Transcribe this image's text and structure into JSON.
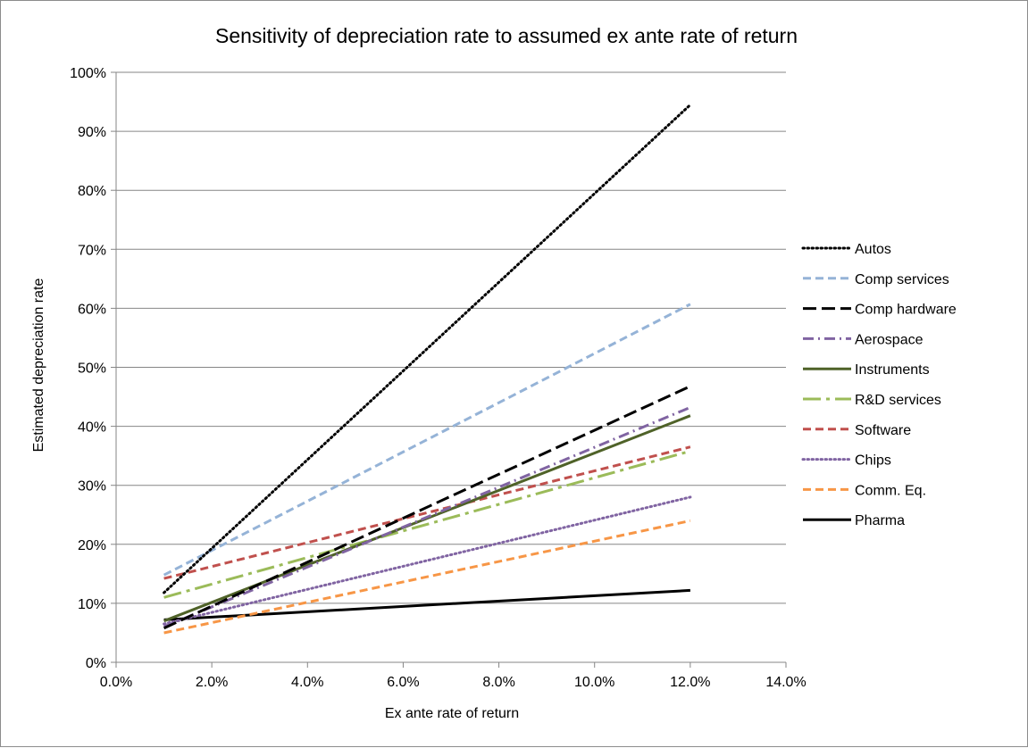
{
  "chart_data": {
    "type": "line",
    "title": "Sensitivity of depreciation rate to assumed ex ante rate of return",
    "xlabel": "Ex ante rate of return",
    "ylabel": "Estimated depreciation rate",
    "xlim": [
      0,
      0.14
    ],
    "ylim": [
      0,
      1.0
    ],
    "x_ticks": [
      "0.0%",
      "2.0%",
      "4.0%",
      "6.0%",
      "8.0%",
      "10.0%",
      "12.0%",
      "14.0%"
    ],
    "y_ticks": [
      "0%",
      "10%",
      "20%",
      "30%",
      "40%",
      "50%",
      "60%",
      "70%",
      "80%",
      "90%",
      "100%"
    ],
    "grid": "horizontal",
    "legend_position": "right",
    "x": [
      0.01,
      0.12
    ],
    "series": [
      {
        "name": "Autos",
        "values": [
          0.118,
          0.945
        ],
        "color": "#000000",
        "dash": "dotted"
      },
      {
        "name": "Comp services",
        "values": [
          0.148,
          0.607
        ],
        "color": "#95b3d7",
        "dash": "dash"
      },
      {
        "name": "Comp hardware",
        "values": [
          0.058,
          0.468
        ],
        "color": "#000000",
        "dash": "longdash"
      },
      {
        "name": "Aerospace",
        "values": [
          0.06,
          0.432
        ],
        "color": "#8064a2",
        "dash": "dashdot"
      },
      {
        "name": "Instruments",
        "values": [
          0.07,
          0.418
        ],
        "color": "#4f6228",
        "dash": "solid"
      },
      {
        "name": "R&D services",
        "values": [
          0.11,
          0.358
        ],
        "color": "#9bbb59",
        "dash": "longdashdot"
      },
      {
        "name": "Software",
        "values": [
          0.142,
          0.365
        ],
        "color": "#c0504d",
        "dash": "dash"
      },
      {
        "name": "Chips",
        "values": [
          0.065,
          0.28
        ],
        "color": "#8064a2",
        "dash": "dotted"
      },
      {
        "name": "Comm. Eq.",
        "values": [
          0.05,
          0.24
        ],
        "color": "#f79646",
        "dash": "dash"
      },
      {
        "name": "Pharma",
        "values": [
          0.072,
          0.122
        ],
        "color": "#000000",
        "dash": "solid"
      }
    ]
  }
}
